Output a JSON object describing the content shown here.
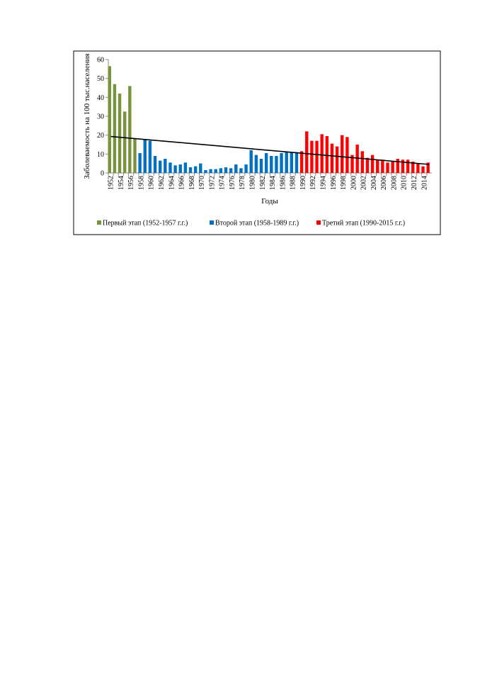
{
  "chart_data": {
    "type": "bar",
    "y_label": "Заболеваемость на 100 тыс.населения",
    "x_label": "Годы",
    "categories": [
      "1952",
      null,
      "1954",
      null,
      "1956",
      null,
      "1958",
      null,
      "1960",
      null,
      "1962",
      null,
      "1964",
      null,
      "1966",
      null,
      "1968",
      null,
      "1970",
      null,
      "1972",
      null,
      "1974",
      null,
      "1976",
      null,
      "1978",
      null,
      "1980",
      null,
      "1982",
      null,
      "1984",
      null,
      "1986",
      null,
      "1988",
      null,
      "1990",
      null,
      "1992",
      null,
      "1994",
      null,
      "1996",
      null,
      "1998",
      null,
      "2000",
      null,
      "2002",
      null,
      "2004",
      null,
      "2006",
      null,
      "2008",
      null,
      "2010",
      null,
      "2012",
      null,
      "2014",
      null
    ],
    "series": [
      {
        "name": "Первый этап (1952-1957 г.г.)",
        "color": "#77933c",
        "values": [
          56.5,
          47,
          42,
          32.5,
          46,
          18,
          null,
          null,
          null,
          null,
          null,
          null,
          null,
          null,
          null,
          null,
          null,
          null,
          null,
          null,
          null,
          null,
          null,
          null,
          null,
          null,
          null,
          null,
          null,
          null,
          null,
          null,
          null,
          null,
          null,
          null,
          null,
          null,
          null,
          null,
          null,
          null,
          null,
          null,
          null,
          null,
          null,
          null,
          null,
          null,
          null,
          null,
          null,
          null,
          null,
          null,
          null,
          null,
          null,
          null,
          null,
          null,
          null,
          null
        ]
      },
      {
        "name": "Второй этап (1958-1989 г.г.)",
        "color": "#0070c0",
        "values": [
          null,
          null,
          null,
          null,
          null,
          null,
          10.5,
          18,
          17,
          9,
          6.5,
          7.5,
          5.5,
          4,
          4.5,
          5.5,
          3,
          3.5,
          5,
          1.5,
          2,
          2,
          2.5,
          3,
          2.5,
          4.5,
          2.5,
          4.5,
          12,
          9.5,
          7.5,
          10.5,
          9,
          9,
          10.5,
          11,
          11,
          11,
          null,
          null,
          null,
          null,
          null,
          null,
          null,
          null,
          null,
          null,
          null,
          null,
          null,
          null,
          null,
          null,
          null,
          null,
          null,
          null,
          null,
          null,
          null,
          null,
          null,
          null
        ]
      },
      {
        "name": "Третий этап (1990-2015 г.г.)",
        "color": "#ff0000",
        "values": [
          null,
          null,
          null,
          null,
          null,
          null,
          null,
          null,
          null,
          null,
          null,
          null,
          null,
          null,
          null,
          null,
          null,
          null,
          null,
          null,
          null,
          null,
          null,
          null,
          null,
          null,
          null,
          null,
          null,
          null,
          null,
          null,
          null,
          null,
          null,
          null,
          null,
          null,
          11.5,
          22,
          17,
          17,
          20.5,
          19.5,
          15.5,
          14,
          20,
          19,
          9.5,
          15,
          11.5,
          8,
          9.5,
          7,
          7,
          5.5,
          6,
          7.5,
          7,
          7,
          6,
          5,
          3.5,
          5.5
        ]
      }
    ],
    "trend_line": {
      "color": "#000000",
      "values": [
        19.3,
        4.5
      ]
    },
    "ylim": [
      0,
      60
    ],
    "yticks": [
      0,
      10,
      20,
      30,
      40,
      50,
      60
    ],
    "legend": "bottom"
  }
}
